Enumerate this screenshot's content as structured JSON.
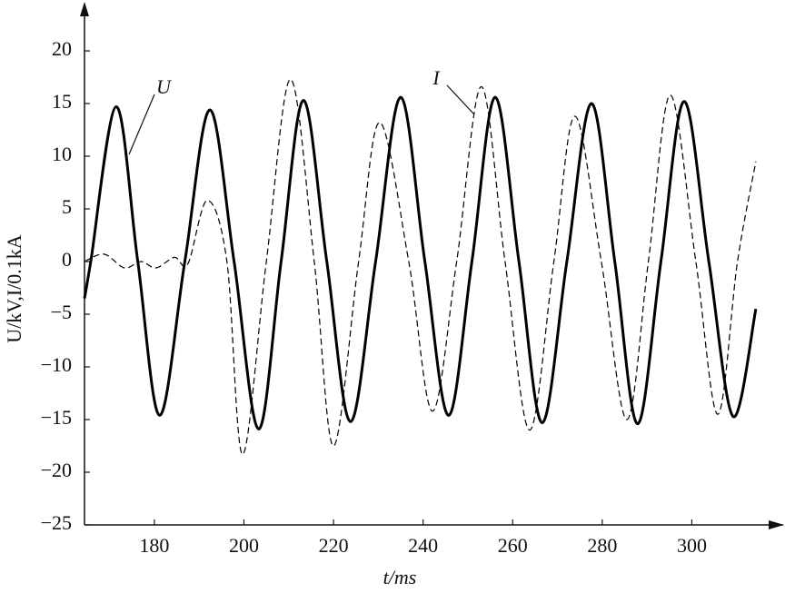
{
  "chart_data": {
    "type": "line",
    "xlabel": "t/ms",
    "ylabel": "U/kV,I/0.1kA",
    "xlim": [
      164.4,
      320.4
    ],
    "ylim": [
      -25,
      24.4
    ],
    "xticks": [
      180,
      200,
      220,
      240,
      260,
      280,
      300
    ],
    "yticks": [
      20,
      15,
      10,
      5,
      0,
      {
        "value": -5,
        "label": "−5"
      },
      {
        "value": -10,
        "label": "−10"
      },
      {
        "value": -15,
        "label": "−15"
      },
      {
        "value": -20,
        "label": "−20"
      },
      {
        "value": -25,
        "label": "−25"
      }
    ],
    "grid": false,
    "series": [
      {
        "name": "U",
        "color": "#000000",
        "line_style": "solid",
        "line_width": 3,
        "x": [
          164.4,
          165.8,
          171.5,
          176.3,
          181.2,
          186.8,
          192.4,
          197.8,
          203.3,
          208.3,
          213.3,
          218.5,
          223.8,
          229.4,
          235,
          240.4,
          245.7,
          250.9,
          256.1,
          261.4,
          266.6,
          272.1,
          277.6,
          282.8,
          287.9,
          293.1,
          298.3,
          303.8,
          309.2,
          314.3
        ],
        "values": [
          -3.5,
          0,
          14.7,
          0,
          -14.6,
          0,
          14.4,
          0,
          -15.9,
          0,
          15.3,
          0,
          -15.2,
          0,
          15.6,
          0,
          -14.6,
          0,
          15.6,
          0,
          -15.3,
          0,
          15,
          0,
          -15.4,
          0,
          15.2,
          0,
          -14.7,
          -4.5
        ]
      },
      {
        "name": "I",
        "color": "#000000",
        "line_style": "dashed",
        "line_width": 1.2,
        "x": [
          164.4,
          168.8,
          173.3,
          177,
          180.4,
          184.5,
          187.5,
          191.8,
          196.2,
          199.7,
          205,
          210.4,
          215.7,
          220,
          225.6,
          230.3,
          236.8,
          242.1,
          247.5,
          253,
          258.3,
          263.8,
          269.2,
          273.9,
          279.8,
          285.5,
          290.3,
          295.2,
          300.9,
          305.8,
          310.2,
          314.3
        ],
        "values": [
          0,
          0.7,
          -0.6,
          0,
          -0.6,
          0.4,
          -0.2,
          5.8,
          0,
          -18.3,
          0,
          17.3,
          0,
          -17.5,
          0,
          13.2,
          0,
          -14.2,
          0,
          16.6,
          0,
          -16,
          0,
          13.8,
          0,
          -15,
          0,
          15.8,
          0,
          -14.5,
          0,
          9.5
        ]
      }
    ]
  }
}
